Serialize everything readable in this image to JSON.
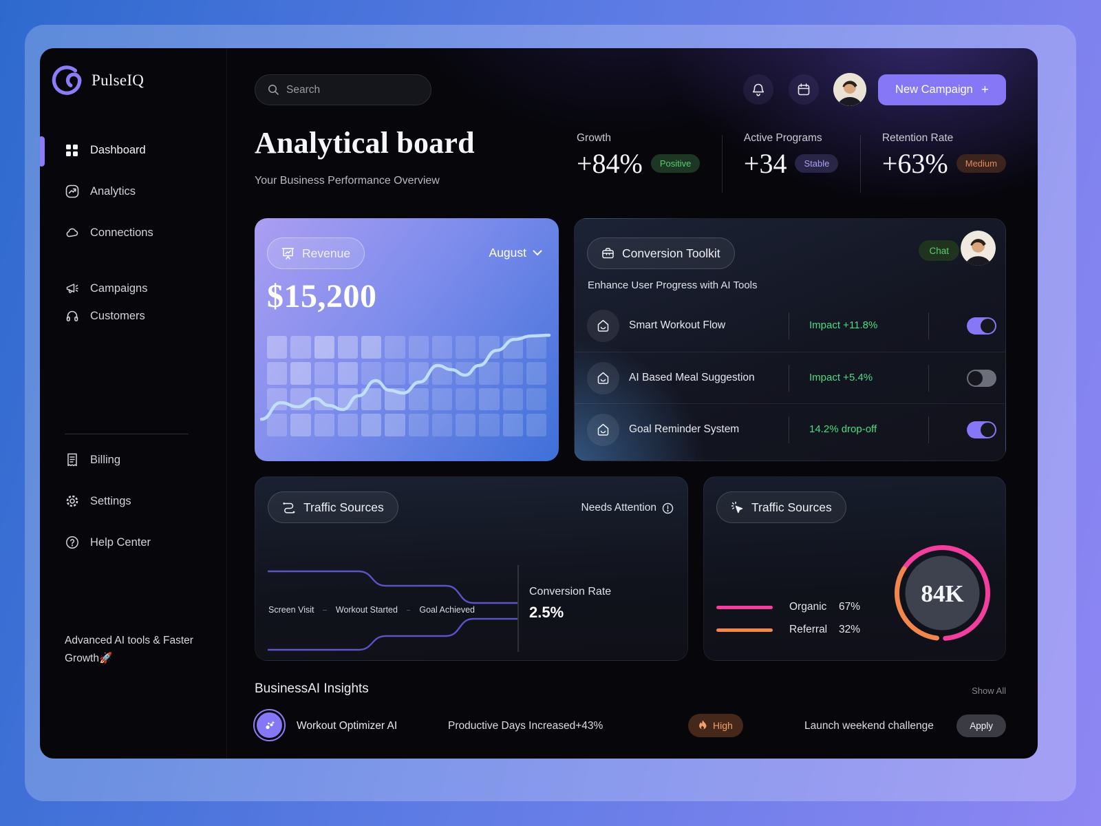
{
  "brand": {
    "name": "PulseIQ"
  },
  "sidebar": {
    "items": [
      {
        "label": "Dashboard",
        "active": true
      },
      {
        "label": "Analytics",
        "active": false
      },
      {
        "label": "Connections",
        "active": false
      },
      {
        "label": "Campaigns",
        "active": false
      },
      {
        "label": "Customers",
        "active": false
      }
    ],
    "secondary": [
      {
        "label": "Billing"
      },
      {
        "label": "Settings"
      },
      {
        "label": "Help Center"
      }
    ],
    "footer": "Advanced AI tools & Faster Growth🚀"
  },
  "topbar": {
    "search_placeholder": "Search",
    "new_campaign_label": "New Campaign",
    "new_campaign_plus": "+"
  },
  "header": {
    "title": "Analytical board",
    "subtitle": "Your Business Performance Overview",
    "stats": [
      {
        "label": "Growth",
        "value": "+84%",
        "badge": "Positive",
        "badge_color": "#57d06b",
        "badge_bg": "#1e3624"
      },
      {
        "label": "Active Programs",
        "value": "+34",
        "badge": "Stable",
        "badge_color": "#a7a2f0",
        "badge_bg": "#282547"
      },
      {
        "label": "Retention Rate",
        "value": "+63%",
        "badge": "Medium",
        "badge_color": "#e2885c",
        "badge_bg": "#3a241d"
      }
    ]
  },
  "revenue_card": {
    "pill": "Revenue",
    "period": "August",
    "amount": "$15,200",
    "heatmap": [
      0.3,
      0.26,
      0.38,
      0.3,
      0.34,
      0.18,
      0.16,
      0.16,
      0.14,
      0.16,
      0.18,
      0.14,
      0.26,
      0.34,
      0.22,
      0.3,
      0.16,
      0.14,
      0.18,
      0.16,
      0.14,
      0.16,
      0.14,
      0.16,
      0.22,
      0.24,
      0.26,
      0.3,
      0.28,
      0.3,
      0.18,
      0.16,
      0.14,
      0.18,
      0.16,
      0.14,
      0.18,
      0.28,
      0.22,
      0.2,
      0.28,
      0.26,
      0.16,
      0.14,
      0.16,
      0.14,
      0.18,
      0.16
    ],
    "line_points": [
      [
        2,
        136
      ],
      [
        30,
        112
      ],
      [
        55,
        118
      ],
      [
        80,
        106
      ],
      [
        100,
        116
      ],
      [
        120,
        122
      ],
      [
        143,
        102
      ],
      [
        168,
        80
      ],
      [
        188,
        94
      ],
      [
        208,
        98
      ],
      [
        232,
        82
      ],
      [
        258,
        58
      ],
      [
        278,
        64
      ],
      [
        298,
        72
      ],
      [
        318,
        58
      ],
      [
        344,
        36
      ],
      [
        370,
        20
      ],
      [
        395,
        15
      ],
      [
        420,
        14
      ]
    ]
  },
  "toolkit_card": {
    "pill": "Conversion Toolkit",
    "chat_badge": "Chat",
    "subtitle": "Enhance User Progress with AI Tools",
    "rows": [
      {
        "label": "Smart Workout Flow",
        "impact": "Impact +11.8%",
        "enabled": true
      },
      {
        "label": "AI Based Meal Suggestion",
        "impact": "Impact +5.4%",
        "enabled": false
      },
      {
        "label": "Goal Reminder System",
        "impact": "14.2% drop-off",
        "enabled": true
      }
    ]
  },
  "funnel_card": {
    "pill": "Traffic Sources",
    "attention": "Needs Attention",
    "stages": [
      "Screen Visit",
      "Workout Started",
      "Goal Achieved"
    ],
    "conversion_label": "Conversion Rate",
    "conversion_value": "2.5%"
  },
  "donut_card": {
    "pill": "Traffic Sources",
    "total": "84K",
    "legend": [
      {
        "label": "Organic",
        "value": "67%",
        "pct": 67,
        "color": "#f23e9c"
      },
      {
        "label": "Referral",
        "value": "32%",
        "pct": 32,
        "color": "#f2874e"
      }
    ]
  },
  "insights": {
    "title": "BusinessAI Insights",
    "show_all": "Show All",
    "row": {
      "name": "Workout Optimizer AI",
      "metric": "Productive Days Increased+43%",
      "priority": "High",
      "action": "Launch weekend challenge",
      "apply": "Apply"
    }
  },
  "colors": {
    "accent": "#8577f5",
    "impact_green": "#4ade80",
    "funnel_line": "#5b54c8",
    "revenue_line": "#c3e2f8",
    "donut_inner": "#3d424e"
  }
}
